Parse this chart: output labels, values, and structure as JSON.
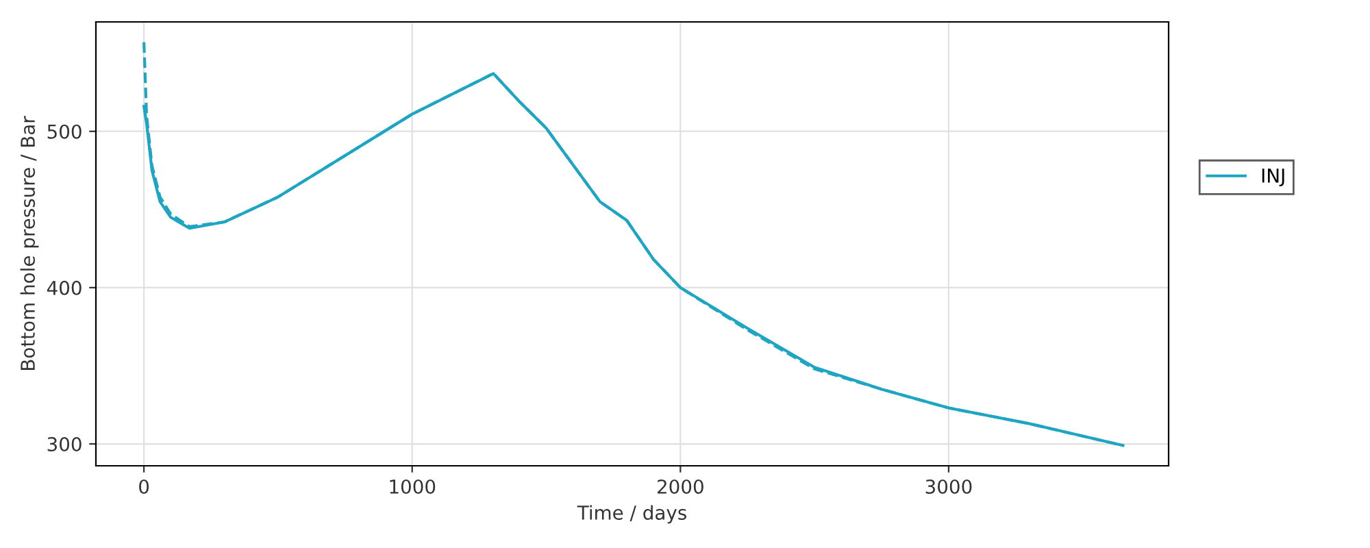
{
  "chart_data": {
    "type": "line",
    "xlabel": "Time / days",
    "ylabel": "Bottom hole pressure / Bar",
    "xlim": [
      -179,
      3820
    ],
    "xticks": [
      0,
      1000,
      2000,
      3000
    ],
    "ylim": [
      286,
      570
    ],
    "yticks": [
      300,
      400,
      500
    ],
    "grid": true,
    "legend": "right",
    "marker": "none",
    "series": [
      {
        "name": "INJ",
        "color": "#1fa5c4",
        "line_style": "solid",
        "x": [
          0,
          10,
          30,
          60,
          100,
          170,
          300,
          500,
          1000,
          1303,
          1400,
          1500,
          1700,
          1800,
          1900,
          2000,
          2250,
          2500,
          2750,
          3000,
          3300,
          3650
        ],
        "values": [
          516,
          505,
          475,
          455,
          445,
          438,
          442,
          458,
          511,
          537,
          519,
          502,
          455,
          443,
          418,
          400,
          374,
          349,
          335,
          323,
          313,
          299
        ]
      },
      {
        "color": "#1fa5c4",
        "line_style": "dashed",
        "x": [
          0,
          10,
          30,
          60,
          100,
          170,
          300,
          500,
          1000,
          1303,
          1400,
          1500,
          1700,
          1800,
          1900,
          2000,
          2250,
          2500,
          2750,
          3000,
          3300,
          3650
        ],
        "values": [
          557,
          510,
          478,
          458,
          447,
          439,
          442,
          458,
          511,
          537,
          519,
          502,
          455,
          443,
          418,
          400,
          373,
          348,
          335,
          323,
          313,
          299
        ]
      }
    ]
  }
}
